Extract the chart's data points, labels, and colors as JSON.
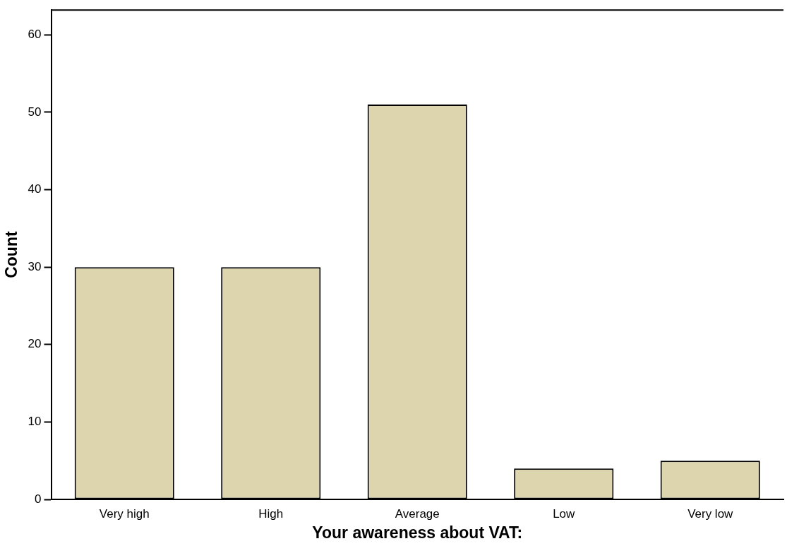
{
  "chart_data": {
    "type": "bar",
    "xlabel": "Your awareness about VAT:",
    "ylabel": "Count",
    "categories": [
      "Very high",
      "High",
      "Average",
      "Low",
      "Very low"
    ],
    "values": [
      30,
      30,
      51,
      4,
      5
    ],
    "color": "#ddd5ad",
    "ylim": [
      0,
      63.2
    ],
    "yticks": [
      0,
      10,
      20,
      30,
      40,
      50,
      60
    ],
    "grid": false,
    "legend": false
  }
}
